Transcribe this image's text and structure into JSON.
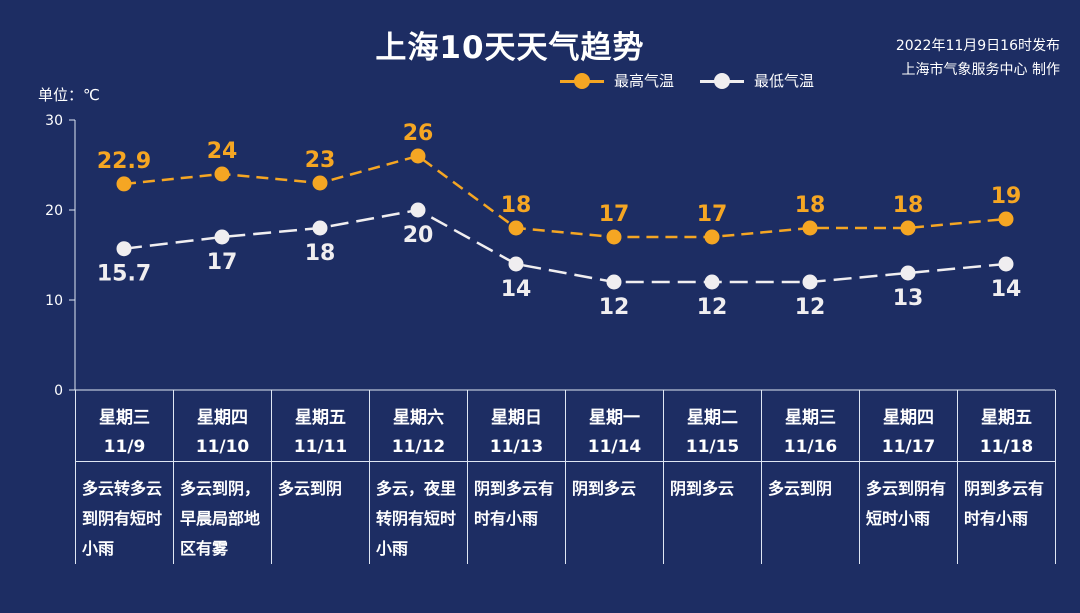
{
  "header": {
    "title": "上海10天天气趋势",
    "publish_line1": "2022年11月9日16时发布",
    "publish_line2": "上海市气象服务中心 制作",
    "unit_label": "单位：℃"
  },
  "colors": {
    "high": "#f5a623",
    "low": "#f0eef0",
    "axis": "#dfe6f3",
    "background": "#1d2d63"
  },
  "chart_data": {
    "type": "line",
    "ylim": [
      0,
      30
    ],
    "yticks": [
      0,
      10,
      20,
      30
    ],
    "ylabel": "单位：℃",
    "legend_position": "top-right",
    "categories": [
      "11/9",
      "11/10",
      "11/11",
      "11/12",
      "11/13",
      "11/14",
      "11/15",
      "11/16",
      "11/17",
      "11/18"
    ],
    "series": [
      {
        "name": "最高气温",
        "values": [
          22.9,
          24,
          23,
          26,
          18,
          17,
          17,
          18,
          18,
          19
        ],
        "labels": [
          "22.9",
          "24",
          "23",
          "26",
          "18",
          "17",
          "17",
          "18",
          "18",
          "19"
        ]
      },
      {
        "name": "最低气温",
        "values": [
          15.7,
          17,
          18,
          20,
          14,
          12,
          12,
          12,
          13,
          14
        ],
        "labels": [
          "15.7",
          "17",
          "18",
          "20",
          "14",
          "12",
          "12",
          "12",
          "13",
          "14"
        ]
      }
    ]
  },
  "days": [
    {
      "weekday": "星期三",
      "date": "11/9",
      "desc": "多云转多云到阴有短时小雨"
    },
    {
      "weekday": "星期四",
      "date": "11/10",
      "desc": "多云到阴，早晨局部地区有雾"
    },
    {
      "weekday": "星期五",
      "date": "11/11",
      "desc": "多云到阴"
    },
    {
      "weekday": "星期六",
      "date": "11/12",
      "desc": "多云，夜里转阴有短时小雨"
    },
    {
      "weekday": "星期日",
      "date": "11/13",
      "desc": "阴到多云有时有小雨"
    },
    {
      "weekday": "星期一",
      "date": "11/14",
      "desc": "阴到多云"
    },
    {
      "weekday": "星期二",
      "date": "11/15",
      "desc": "阴到多云"
    },
    {
      "weekday": "星期三",
      "date": "11/16",
      "desc": "多云到阴"
    },
    {
      "weekday": "星期四",
      "date": "11/17",
      "desc": "多云到阴有短时小雨"
    },
    {
      "weekday": "星期五",
      "date": "11/18",
      "desc": "阴到多云有时有小雨"
    }
  ]
}
